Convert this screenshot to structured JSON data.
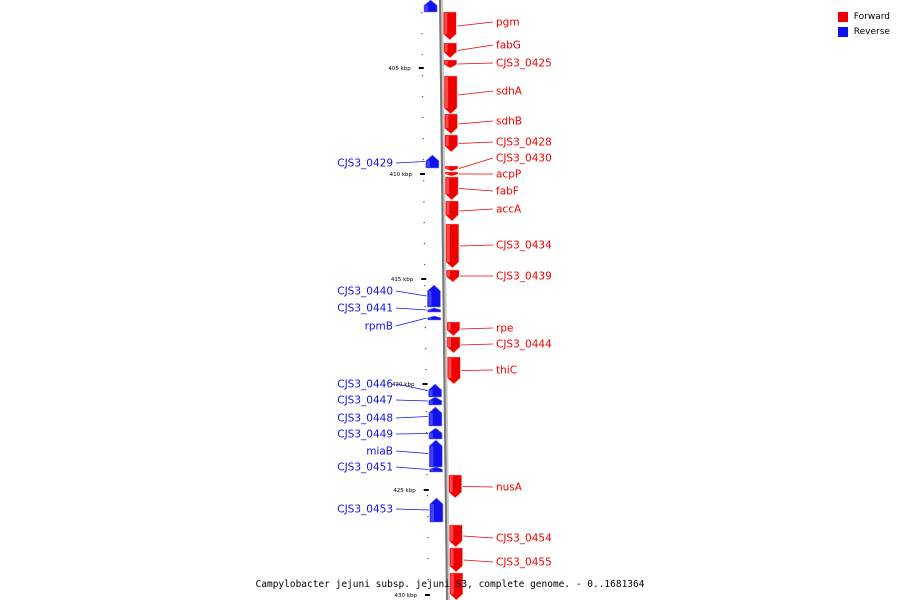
{
  "caption": "Campylobacter jejuni subsp. jejuni S3, complete genome. - 0..1681364",
  "legend": {
    "forward_label": "Forward",
    "reverse_label": "Reverse"
  },
  "colors": {
    "forward": "#ee0000",
    "reverse": "#1111ee",
    "backbone": "#777777"
  },
  "scale": {
    "unit": "kbp",
    "ticks": [
      "405 kbp",
      "410 kbp",
      "415 kbp",
      "420 kbp",
      "425 kbp",
      "430 kbp"
    ]
  },
  "genes": [
    {
      "label": "",
      "strand": "reverse"
    },
    {
      "label": "pgm",
      "strand": "forward"
    },
    {
      "label": "fabG",
      "strand": "forward"
    },
    {
      "label": "CJS3_0425",
      "strand": "forward"
    },
    {
      "label": "sdhA",
      "strand": "forward"
    },
    {
      "label": "sdhB",
      "strand": "forward"
    },
    {
      "label": "CJS3_0428",
      "strand": "forward"
    },
    {
      "label": "CJS3_0429",
      "strand": "reverse"
    },
    {
      "label": "CJS3_0430",
      "strand": "forward"
    },
    {
      "label": "acpP",
      "strand": "forward"
    },
    {
      "label": "fabF",
      "strand": "forward"
    },
    {
      "label": "accA",
      "strand": "forward"
    },
    {
      "label": "CJS3_0434",
      "strand": "forward"
    },
    {
      "label": "CJS3_0439",
      "strand": "forward"
    },
    {
      "label": "CJS3_0440",
      "strand": "reverse"
    },
    {
      "label": "CJS3_0441",
      "strand": "reverse"
    },
    {
      "label": "rpmB",
      "strand": "reverse"
    },
    {
      "label": "rpe",
      "strand": "forward"
    },
    {
      "label": "CJS3_0444",
      "strand": "forward"
    },
    {
      "label": "thiC",
      "strand": "forward"
    },
    {
      "label": "CJS3_0446",
      "strand": "reverse"
    },
    {
      "label": "CJS3_0447",
      "strand": "reverse"
    },
    {
      "label": "CJS3_0448",
      "strand": "reverse"
    },
    {
      "label": "CJS3_0449",
      "strand": "reverse"
    },
    {
      "label": "miaB",
      "strand": "reverse"
    },
    {
      "label": "CJS3_0451",
      "strand": "reverse"
    },
    {
      "label": "nusA",
      "strand": "forward"
    },
    {
      "label": "CJS3_0453",
      "strand": "reverse"
    },
    {
      "label": "CJS3_0454",
      "strand": "forward"
    },
    {
      "label": "CJS3_0455",
      "strand": "forward"
    },
    {
      "label": "",
      "strand": "forward"
    }
  ]
}
